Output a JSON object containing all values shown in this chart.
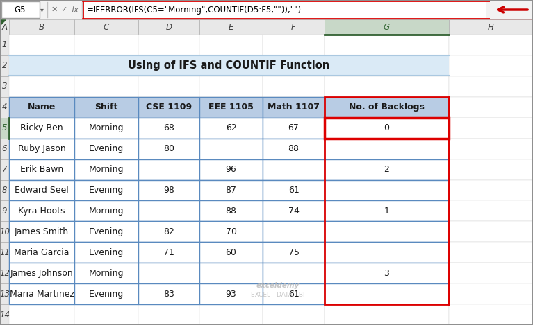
{
  "formula_bar_cell": "G5",
  "formula_text": "=IFERROR(IFS(C5=\"Morning\",COUNTIF(D5:F5,\"\")),\"\")",
  "title_text": "Using of IFS and COUNTIF Function",
  "title_bg": "#daeaf6",
  "col_headers": [
    "A",
    "B",
    "C",
    "D",
    "E",
    "F",
    "G",
    "H"
  ],
  "table_headers": [
    "Name",
    "Shift",
    "CSE 1109",
    "EEE 1105",
    "Math 1107",
    "No. of Backlogs"
  ],
  "header_bg": "#b8cce4",
  "table_data": [
    [
      "Ricky Ben",
      "Morning",
      "68",
      "62",
      "67",
      "0"
    ],
    [
      "Ruby Jason",
      "Evening",
      "80",
      "",
      "88",
      ""
    ],
    [
      "Erik Bawn",
      "Morning",
      "",
      "96",
      "",
      "2"
    ],
    [
      "Edward Seel",
      "Evening",
      "98",
      "87",
      "61",
      ""
    ],
    [
      "Kyra Hoots",
      "Morning",
      "",
      "88",
      "74",
      "1"
    ],
    [
      "James Smith",
      "Evening",
      "82",
      "70",
      "",
      ""
    ],
    [
      "Maria Garcia",
      "Evening",
      "71",
      "60",
      "75",
      ""
    ],
    [
      "James Johnson",
      "Morning",
      "",
      "",
      "",
      "3"
    ],
    [
      "Maria Martinez",
      "Evening",
      "83",
      "93",
      "61",
      ""
    ]
  ],
  "border_red": "#dd0000",
  "selected_cell_color": "#dd0000",
  "arrow_color": "#cc0000",
  "watermark_line1": "exceldemy",
  "watermark_line2": "EXCEL - DATA - BI",
  "bg_color": "#f2f2f2",
  "col_header_bg": "#e8e8e8",
  "col_header_selected_bg": "#c8d8c8",
  "row_header_bg": "#e8e8e8",
  "row_header_selected_bg": "#c8d8c8",
  "table_border_color": "#5a8abf",
  "cell_line_color": "#b0b8c0"
}
